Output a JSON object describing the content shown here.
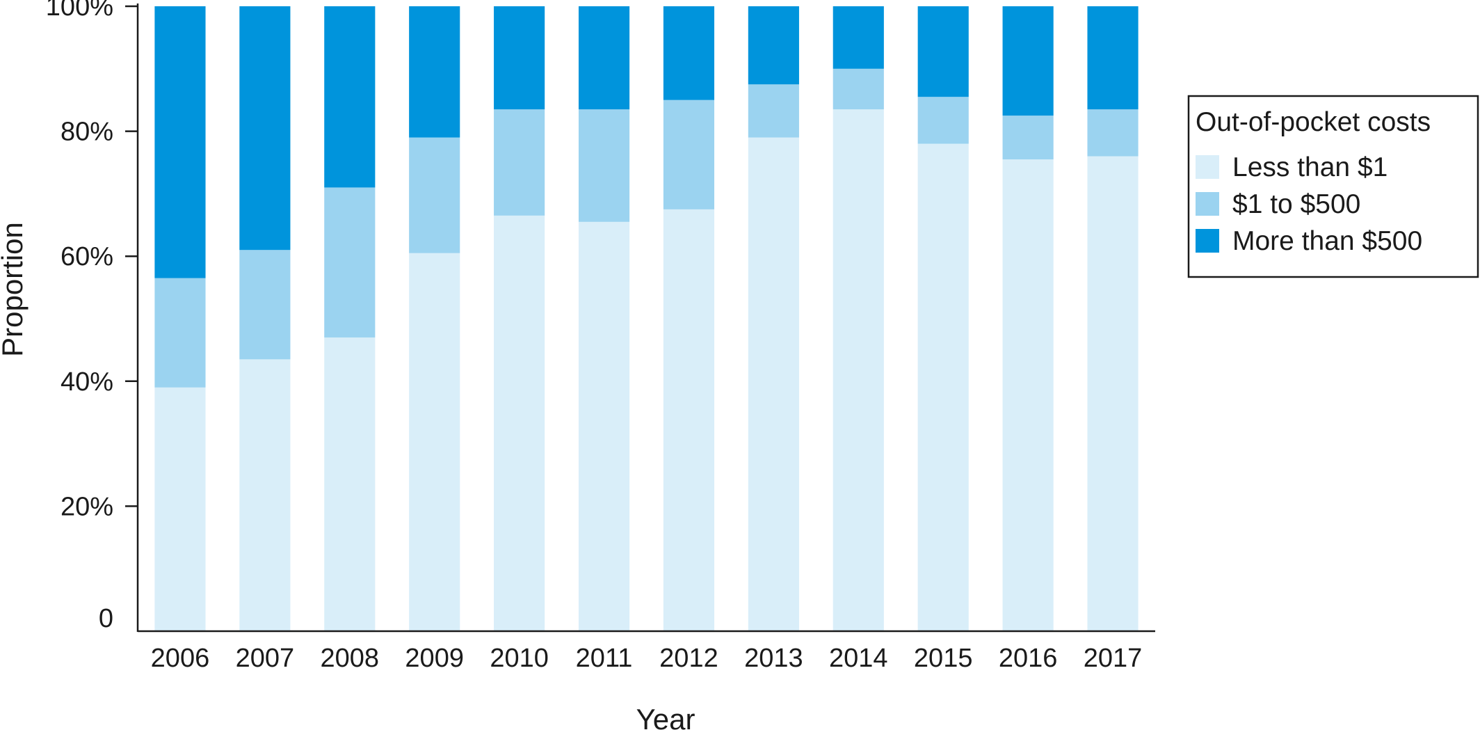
{
  "chart_data": {
    "type": "bar",
    "stacked": true,
    "title": "",
    "xlabel": "Year",
    "ylabel": "Proportion",
    "ylim": [
      0,
      100
    ],
    "y_ticks": [
      {
        "value": 0,
        "label": "0"
      },
      {
        "value": 20,
        "label": "20%"
      },
      {
        "value": 40,
        "label": "40%"
      },
      {
        "value": 60,
        "label": "60%"
      },
      {
        "value": 80,
        "label": "80%"
      },
      {
        "value": 100,
        "label": "100%"
      }
    ],
    "categories": [
      "2006",
      "2007",
      "2008",
      "2009",
      "2010",
      "2011",
      "2012",
      "2013",
      "2014",
      "2015",
      "2016",
      "2017"
    ],
    "series": [
      {
        "name": "Less than $1",
        "color": "#d9eef9",
        "values": [
          39,
          43.5,
          47,
          60.5,
          66.5,
          65.5,
          67.5,
          79,
          83.5,
          78,
          75.5,
          76
        ]
      },
      {
        "name": "$1 to $500",
        "color": "#9bd3f0",
        "values": [
          17.5,
          17.5,
          24,
          18.5,
          17,
          18,
          17.5,
          8.5,
          6.5,
          7.5,
          7,
          7.5
        ]
      },
      {
        "name": "More than $500",
        "color": "#0094dc",
        "values": [
          43.5,
          39,
          29,
          21,
          16.5,
          16.5,
          15,
          12.5,
          10,
          14.5,
          17.5,
          16.5
        ]
      }
    ],
    "legend": {
      "title": "Out-of-pocket costs",
      "position": "right"
    },
    "grid": false
  }
}
